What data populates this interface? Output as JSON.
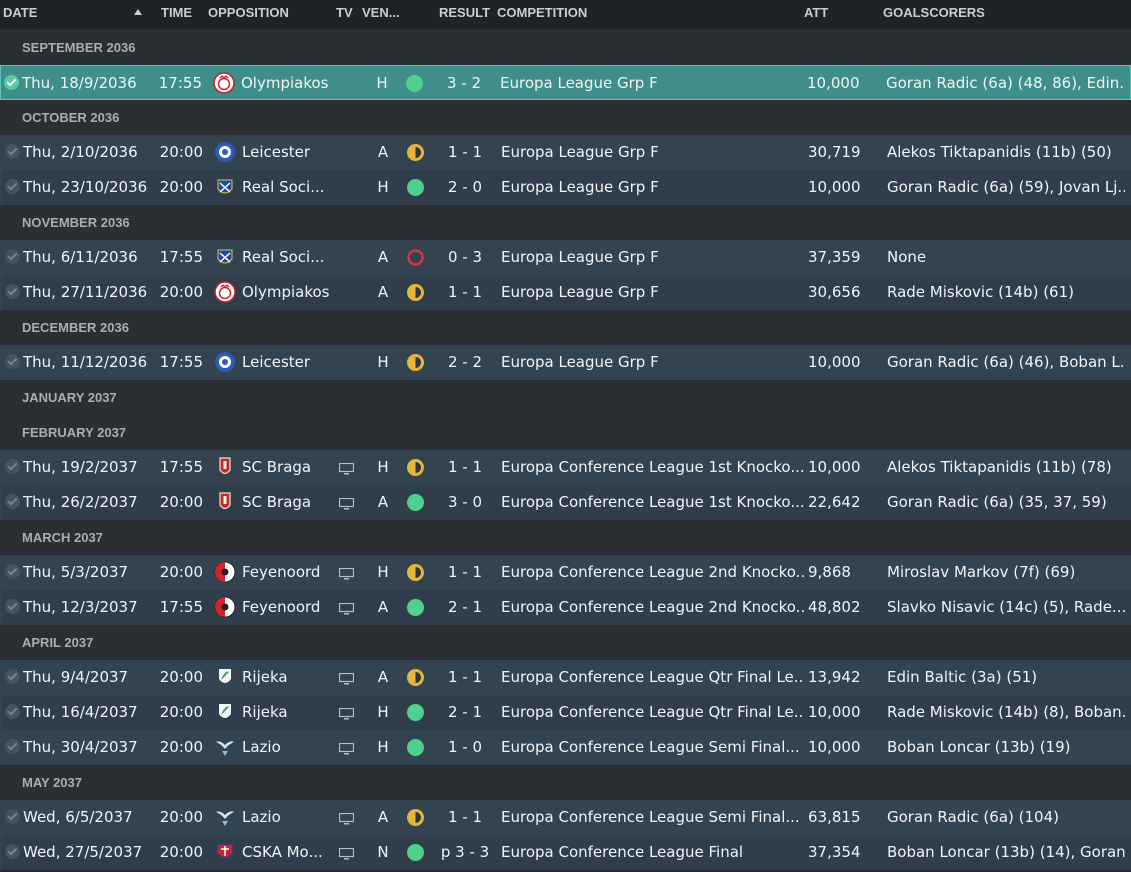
{
  "columns": {
    "date": "DATE",
    "time": "TIME",
    "opposition": "OPPOSITION",
    "tv": "TV",
    "venue": "VEN...",
    "result": "RESULT",
    "competition": "COMPETITION",
    "attendance": "ATT",
    "goalscorers": "GOALSCORERS"
  },
  "colors": {
    "win": "#4fd08c",
    "draw": "#e8b43c",
    "loss": "#d9363e",
    "selected_row": "#3e8e89"
  },
  "groups": [
    {
      "month": "SEPTEMBER 2036",
      "matches": [
        {
          "date": "Thu, 18/9/2036",
          "time": "17:55",
          "crest": "olympiakos-crest",
          "opposition": "Olympiakos",
          "tv": false,
          "venue": "H",
          "outcome": "win",
          "result": "3 - 2",
          "competition": "Europa League Grp F",
          "attendance": "10,000",
          "goalscorers": "Goran Radic (6a) (48, 86), Edin...",
          "selected": true
        }
      ]
    },
    {
      "month": "OCTOBER 2036",
      "matches": [
        {
          "date": "Thu, 2/10/2036",
          "time": "20:00",
          "crest": "leicester-crest",
          "opposition": "Leicester",
          "tv": false,
          "venue": "A",
          "outcome": "draw",
          "result": "1 - 1",
          "competition": "Europa League Grp F",
          "attendance": "30,719",
          "goalscorers": "Alekos Tiktapanidis (11b) (50)"
        },
        {
          "date": "Thu, 23/10/2036",
          "time": "20:00",
          "crest": "real-sociedad-crest",
          "opposition": "Real Soci...",
          "tv": false,
          "venue": "H",
          "outcome": "win",
          "result": "2 - 0",
          "competition": "Europa League Grp F",
          "attendance": "10,000",
          "goalscorers": "Goran Radic (6a) (59), Jovan Lj..."
        }
      ]
    },
    {
      "month": "NOVEMBER 2036",
      "matches": [
        {
          "date": "Thu, 6/11/2036",
          "time": "17:55",
          "crest": "real-sociedad-crest",
          "opposition": "Real Soci...",
          "tv": false,
          "venue": "A",
          "outcome": "loss",
          "result": "0 - 3",
          "competition": "Europa League Grp F",
          "attendance": "37,359",
          "goalscorers": "None"
        },
        {
          "date": "Thu, 27/11/2036",
          "time": "20:00",
          "crest": "olympiakos-crest",
          "opposition": "Olympiakos",
          "tv": false,
          "venue": "A",
          "outcome": "draw",
          "result": "1 - 1",
          "competition": "Europa League Grp F",
          "attendance": "30,656",
          "goalscorers": "Rade Miskovic (14b) (61)"
        }
      ]
    },
    {
      "month": "DECEMBER 2036",
      "matches": [
        {
          "date": "Thu, 11/12/2036",
          "time": "17:55",
          "crest": "leicester-crest",
          "opposition": "Leicester",
          "tv": false,
          "venue": "H",
          "outcome": "draw",
          "result": "2 - 2",
          "competition": "Europa League Grp F",
          "attendance": "10,000",
          "goalscorers": "Goran Radic (6a) (46), Boban L..."
        }
      ]
    },
    {
      "month": "JANUARY 2037",
      "matches": []
    },
    {
      "month": "FEBRUARY 2037",
      "matches": [
        {
          "date": "Thu, 19/2/2037",
          "time": "17:55",
          "crest": "sc-braga-crest",
          "opposition": "SC Braga",
          "tv": true,
          "venue": "H",
          "outcome": "draw",
          "result": "1 - 1",
          "competition": "Europa Conference League 1st Knocko...",
          "attendance": "10,000",
          "goalscorers": "Alekos Tiktapanidis (11b) (78)"
        },
        {
          "date": "Thu, 26/2/2037",
          "time": "20:00",
          "crest": "sc-braga-crest",
          "opposition": "SC Braga",
          "tv": true,
          "venue": "A",
          "outcome": "win",
          "result": "3 - 0",
          "competition": "Europa Conference League 1st Knocko...",
          "attendance": "22,642",
          "goalscorers": "Goran Radic (6a) (35, 37, 59)"
        }
      ]
    },
    {
      "month": "MARCH 2037",
      "matches": [
        {
          "date": "Thu, 5/3/2037",
          "time": "20:00",
          "crest": "feyenoord-crest",
          "opposition": "Feyenoord",
          "tv": true,
          "venue": "H",
          "outcome": "draw",
          "result": "1 - 1",
          "competition": "Europa Conference League 2nd Knocko...",
          "attendance": "9,868",
          "goalscorers": "Miroslav Markov (7f) (69)"
        },
        {
          "date": "Thu, 12/3/2037",
          "time": "17:55",
          "crest": "feyenoord-crest",
          "opposition": "Feyenoord",
          "tv": true,
          "venue": "A",
          "outcome": "win",
          "result": "2 - 1",
          "competition": "Europa Conference League 2nd Knocko...",
          "attendance": "48,802",
          "goalscorers": "Slavko Nisavic (14c) (5), Rade..."
        }
      ]
    },
    {
      "month": "APRIL 2037",
      "matches": [
        {
          "date": "Thu, 9/4/2037",
          "time": "20:00",
          "crest": "rijeka-crest",
          "opposition": "Rijeka",
          "tv": true,
          "venue": "A",
          "outcome": "draw",
          "result": "1 - 1",
          "competition": "Europa Conference League Qtr Final Le...",
          "attendance": "13,942",
          "goalscorers": "Edin Baltic (3a) (51)"
        },
        {
          "date": "Thu, 16/4/2037",
          "time": "20:00",
          "crest": "rijeka-crest",
          "opposition": "Rijeka",
          "tv": true,
          "venue": "H",
          "outcome": "win",
          "result": "2 - 1",
          "competition": "Europa Conference League Qtr Final Le...",
          "attendance": "10,000",
          "goalscorers": "Rade Miskovic (14b) (8), Boban..."
        },
        {
          "date": "Thu, 30/4/2037",
          "time": "20:00",
          "crest": "lazio-crest",
          "opposition": "Lazio",
          "tv": true,
          "venue": "H",
          "outcome": "win",
          "result": "1 - 0",
          "competition": "Europa Conference League Semi Final...",
          "attendance": "10,000",
          "goalscorers": "Boban Loncar (13b) (19)"
        }
      ]
    },
    {
      "month": "MAY 2037",
      "matches": [
        {
          "date": "Wed, 6/5/2037",
          "time": "20:00",
          "crest": "lazio-crest",
          "opposition": "Lazio",
          "tv": true,
          "venue": "A",
          "outcome": "draw",
          "result": "1 - 1",
          "competition": "Europa Conference League Semi Final...",
          "attendance": "63,815",
          "goalscorers": "Goran Radic (6a) (104)"
        },
        {
          "date": "Wed, 27/5/2037",
          "time": "20:00",
          "crest": "cska-moscow-crest",
          "opposition": "CSKA Mo...",
          "tv": true,
          "venue": "N",
          "outcome": "win",
          "result": "p 3 - 3",
          "competition": "Europa Conference League Final",
          "attendance": "37,354",
          "goalscorers": "Boban Loncar (13b) (14), Goran..."
        }
      ]
    }
  ]
}
